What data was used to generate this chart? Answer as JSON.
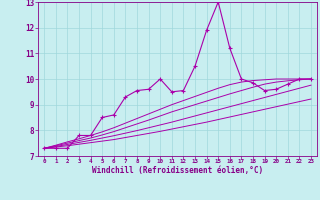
{
  "title": "",
  "xlabel": "Windchill (Refroidissement éolien,°C)",
  "ylabel": "",
  "xlim": [
    -0.5,
    23.5
  ],
  "ylim": [
    7,
    13
  ],
  "xticks": [
    0,
    1,
    2,
    3,
    4,
    5,
    6,
    7,
    8,
    9,
    10,
    11,
    12,
    13,
    14,
    15,
    16,
    17,
    18,
    19,
    20,
    21,
    22,
    23
  ],
  "yticks": [
    7,
    8,
    9,
    10,
    11,
    12,
    13
  ],
  "background_color": "#c8eef0",
  "grid_color": "#a0d8dc",
  "line_color": "#aa00aa",
  "font_color": "#880088",
  "main_line": [
    7.3,
    7.3,
    7.3,
    7.8,
    7.8,
    8.5,
    8.6,
    9.3,
    9.55,
    9.6,
    10.0,
    9.5,
    9.55,
    10.5,
    11.9,
    13.0,
    11.2,
    10.0,
    9.85,
    9.55,
    9.6,
    9.8,
    10.0,
    10.0
  ],
  "smooth_lines": [
    [
      7.3,
      7.35,
      7.4,
      7.46,
      7.52,
      7.58,
      7.64,
      7.72,
      7.8,
      7.88,
      7.96,
      8.05,
      8.14,
      8.23,
      8.32,
      8.42,
      8.52,
      8.62,
      8.72,
      8.82,
      8.92,
      9.02,
      9.12,
      9.22
    ],
    [
      7.3,
      7.37,
      7.45,
      7.53,
      7.61,
      7.7,
      7.79,
      7.89,
      7.99,
      8.1,
      8.21,
      8.32,
      8.44,
      8.56,
      8.68,
      8.8,
      8.92,
      9.04,
      9.16,
      9.28,
      9.4,
      9.52,
      9.64,
      9.76
    ],
    [
      7.3,
      7.4,
      7.5,
      7.6,
      7.7,
      7.82,
      7.95,
      8.1,
      8.25,
      8.4,
      8.56,
      8.72,
      8.86,
      9.0,
      9.14,
      9.28,
      9.42,
      9.55,
      9.68,
      9.8,
      9.88,
      9.93,
      9.97,
      10.0
    ],
    [
      7.3,
      7.42,
      7.55,
      7.67,
      7.8,
      7.94,
      8.1,
      8.28,
      8.46,
      8.64,
      8.82,
      9.0,
      9.16,
      9.32,
      9.48,
      9.64,
      9.78,
      9.88,
      9.94,
      9.97,
      10.0,
      10.0,
      10.0,
      10.0
    ]
  ]
}
